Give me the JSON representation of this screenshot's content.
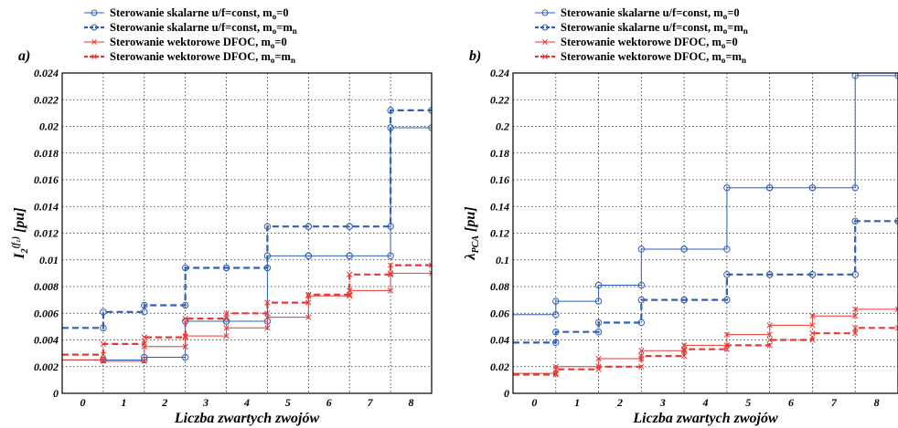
{
  "figure": {
    "legend": [
      {
        "label": "Sterowanie skalarne u/f=const, m",
        "sub": "o",
        "tail": "=0",
        "color": "#2f5fb8",
        "dash": false,
        "marker": "circle"
      },
      {
        "label": "Sterowanie skalarne u/f=const, m",
        "sub": "o",
        "tail": "=m",
        "tail_sub": "n",
        "color": "#2f5fb8",
        "dash": true,
        "marker": "circle"
      },
      {
        "label": "Sterowanie wektorowe DFOC, m",
        "sub": "o",
        "tail": "=0",
        "color": "#e53935",
        "dash": false,
        "marker": "x"
      },
      {
        "label": "Sterowanie wektorowe DFOC, m",
        "sub": "o",
        "tail": "=m",
        "tail_sub": "n",
        "color": "#e53935",
        "dash": true,
        "marker": "x"
      }
    ]
  },
  "chart_data": [
    {
      "type": "line",
      "step": true,
      "panel_label": "a)",
      "xlabel": "Liczba zwartych zwojów",
      "ylabel": {
        "base": "I",
        "sub": "2",
        "sup": "(f₁)",
        "rest": " [pu]"
      },
      "categories": [
        "0",
        "1",
        "2",
        "3",
        "4",
        "5",
        "6",
        "7",
        "8"
      ],
      "ylim": [
        0,
        0.024
      ],
      "yticks": [
        "0",
        "0.002",
        "0.004",
        "0.006",
        "0.008",
        "0.01",
        "0.012",
        "0.014",
        "0.016",
        "0.018",
        "0.02",
        "0.022",
        "0.024"
      ],
      "grid": true,
      "series": [
        {
          "name": "Sterowanie skalarne u/f=const, mo=0",
          "color": "#2f5fb8",
          "dash": false,
          "marker": "circle",
          "values": [
            0.0025,
            0.0025,
            0.0027,
            0.0054,
            0.0054,
            0.0103,
            0.0103,
            0.0103,
            0.0199
          ]
        },
        {
          "name": "Sterowanie skalarne u/f=const, mo=mn",
          "color": "#2f5fb8",
          "dash": true,
          "marker": "circle",
          "values": [
            0.0049,
            0.0061,
            0.0066,
            0.0094,
            0.0094,
            0.0125,
            0.0125,
            0.0125,
            0.0212
          ]
        },
        {
          "name": "Sterowanie wektorowe DFOC, mo=0",
          "color": "#e53935",
          "dash": false,
          "marker": "x",
          "values": [
            0.0025,
            0.0024,
            0.0035,
            0.0043,
            0.0049,
            0.0057,
            0.0073,
            0.0077,
            0.009
          ]
        },
        {
          "name": "Sterowanie wektorowe DFOC, mo=mn",
          "color": "#e53935",
          "dash": true,
          "marker": "x",
          "values": [
            0.0029,
            0.0037,
            0.0042,
            0.0056,
            0.006,
            0.0068,
            0.0074,
            0.0089,
            0.0096
          ]
        }
      ]
    },
    {
      "type": "line",
      "step": true,
      "panel_label": "b)",
      "xlabel": "Liczba zwartych zwojów",
      "ylabel": {
        "base": "λ",
        "sub": "PCA",
        "sup": "",
        "rest": " [pu]"
      },
      "categories": [
        "0",
        "1",
        "2",
        "3",
        "4",
        "5",
        "6",
        "7",
        "8"
      ],
      "ylim": [
        0,
        0.24
      ],
      "yticks": [
        "0",
        "0.02",
        "0.04",
        "0.06",
        "0.08",
        "0.1",
        "0.12",
        "0.14",
        "0.16",
        "0.18",
        "0.2",
        "0.22",
        "0.24"
      ],
      "grid": true,
      "series": [
        {
          "name": "Sterowanie skalarne u/f=const, mo=0",
          "color": "#2f5fb8",
          "dash": false,
          "marker": "circle",
          "values": [
            0.059,
            0.069,
            0.081,
            0.108,
            0.108,
            0.154,
            0.154,
            0.154,
            0.238
          ]
        },
        {
          "name": "Sterowanie skalarne u/f=const, mo=mn",
          "color": "#2f5fb8",
          "dash": true,
          "marker": "circle",
          "values": [
            0.038,
            0.046,
            0.053,
            0.07,
            0.07,
            0.089,
            0.089,
            0.089,
            0.129
          ]
        },
        {
          "name": "Sterowanie wektorowe DFOC, mo=0",
          "color": "#e53935",
          "dash": false,
          "marker": "x",
          "values": [
            0.015,
            0.02,
            0.026,
            0.032,
            0.036,
            0.044,
            0.051,
            0.058,
            0.063
          ]
        },
        {
          "name": "Sterowanie wektorowe DFOC, mo=mn",
          "color": "#e53935",
          "dash": true,
          "marker": "x",
          "values": [
            0.014,
            0.018,
            0.02,
            0.028,
            0.033,
            0.036,
            0.04,
            0.045,
            0.049
          ]
        }
      ]
    }
  ]
}
